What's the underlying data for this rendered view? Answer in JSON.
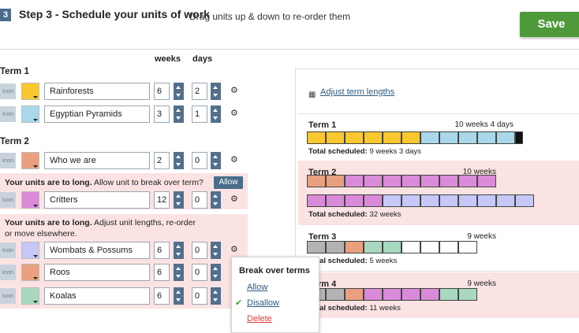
{
  "header": {
    "step_number": "3",
    "title": "Step 3 - Schedule your units of work",
    "hint": "Drag units up & down to re-order them",
    "save_label": "Save"
  },
  "columns": {
    "weeks": "weeks",
    "days": "days"
  },
  "icon_placeholder": "Icon",
  "terms": [
    {
      "label": "Term 1",
      "units": [
        {
          "name": "Rainforests",
          "weeks": "6",
          "days": "2",
          "color": "#f8c82e"
        },
        {
          "name": "Egyptian Pyramids",
          "weeks": "3",
          "days": "1",
          "color": "#a8d8ea"
        }
      ]
    },
    {
      "label": "Term 2",
      "units": [
        {
          "name": "Who we are",
          "weeks": "2",
          "days": "0",
          "color": "#e8a07e"
        }
      ],
      "warning": {
        "bold": "Your units are to long.",
        "text": "Allow unit to break over term?",
        "allow_label": "Allow",
        "units": [
          {
            "name": "Critters",
            "weeks": "12",
            "days": "0",
            "color": "#d98ad8"
          }
        ]
      }
    }
  ],
  "warning2": {
    "bold": "Your units are to long.",
    "text_line1": "Adjust unit lengths, re-order",
    "text_line2": "or move elsewhere.",
    "units": [
      {
        "name": "Wombats & Possums",
        "weeks": "6",
        "days": "0",
        "color": "#c6c8f8"
      },
      {
        "name": "Roos",
        "weeks": "6",
        "days": "0",
        "color": "#e8a07e"
      },
      {
        "name": "Koalas",
        "weeks": "6",
        "days": "0",
        "color": "#a8d8c0"
      }
    ]
  },
  "menu": {
    "title": "Break over terms",
    "allow": "Allow",
    "disallow": "Disallow",
    "delete": "Delete",
    "check": "✔",
    "delete_color": "#e0403a",
    "link_color": "#2d5a80"
  },
  "right_panel": {
    "adjust_icon": "calendar-icon",
    "adjust_link": "Adjust term lengths",
    "terms": [
      {
        "name": "Term 1",
        "length": "10 weeks 4 days",
        "sched_label": "Total scheduled:",
        "sched_value": "9 weeks 3 days",
        "rows": [
          [
            "#f8c82e",
            "#f8c82e",
            "#f8c82e",
            "#f8c82e",
            "#f8c82e",
            "#f8c82e",
            "#a8d8ea",
            "#a8d8ea",
            "#a8d8ea",
            "#a8d8ea",
            "#a8d8ea"
          ]
        ]
      },
      {
        "name": "Term 2",
        "length": "10 weeks",
        "sched_label": "Total scheduled:",
        "sched_value": "32 weeks",
        "rows": [
          [
            "#e8a07e",
            "#e8a07e",
            "#d98ad8",
            "#d98ad8",
            "#d98ad8",
            "#d98ad8",
            "#d98ad8",
            "#d98ad8",
            "#d98ad8",
            "#d98ad8"
          ],
          [
            "#d98ad8",
            "#d98ad8",
            "#d98ad8",
            "#d98ad8",
            "#c6c8f8",
            "#c6c8f8",
            "#c6c8f8",
            "#c6c8f8",
            "#c6c8f8",
            "#c6c8f8",
            "#c6c8f8",
            "#c6c8f8"
          ]
        ]
      },
      {
        "name": "Term 3",
        "length": "9 weeks",
        "sched_label": "Total scheduled:",
        "sched_value": "5 weeks",
        "rows": [
          [
            "#b3b3b3",
            "#b3b3b3",
            "#e8a07e",
            "#a8d8c0",
            "#a8d8c0",
            "#ffffff",
            "#ffffff",
            "#ffffff",
            "#ffffff"
          ]
        ]
      },
      {
        "name": "Term 4",
        "length": "9 weeks",
        "sched_label": "Total scheduled:",
        "sched_value": "11 weeks",
        "rows": [
          [
            "#b3b3b3",
            "#b3b3b3",
            "#e8a07e",
            "#d98ad8",
            "#d98ad8",
            "#d98ad8",
            "#d98ad8",
            "#a8d8c0",
            "#a8d8c0"
          ]
        ]
      }
    ]
  }
}
